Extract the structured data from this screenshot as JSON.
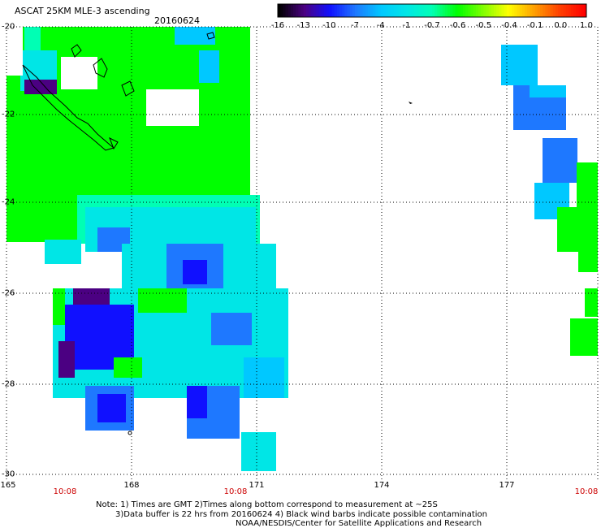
{
  "header": {
    "title": "ASCAT 25KM MLE-3 ascending",
    "date": "20160624"
  },
  "colorbar": {
    "labels": [
      "-16",
      "-13",
      "-10",
      "-7",
      "-4",
      "-1",
      "-0.7",
      "-0.6",
      "-0.5",
      "-0.4",
      "-0.1",
      "0.0",
      "1.0"
    ],
    "colors": [
      "#000000",
      "#4b0082",
      "#1010ff",
      "#1e78ff",
      "#00c8ff",
      "#00e6e6",
      "#00ffb4",
      "#00ff00",
      "#80ff00",
      "#ffff00",
      "#ffa000",
      "#ff4000",
      "#ff0000"
    ]
  },
  "map": {
    "lat_labels": [
      "-20",
      "-22",
      "-24",
      "-26",
      "-28",
      "-30"
    ],
    "lon_labels": [
      "165",
      "168",
      "171",
      "174",
      "177"
    ],
    "time_labels": [
      "10:08",
      "10:08",
      "10:08"
    ]
  },
  "notes": {
    "line1": "Note: 1) Times are GMT 2)Times along bottom correspond to measurement at ~25S",
    "line2": "3)Data buffer is 22 hrs from 20160624 4) Black wind barbs indicate possible contamination",
    "credit": "NOAA/NESDIS/Center for Satellite Applications and Research"
  }
}
